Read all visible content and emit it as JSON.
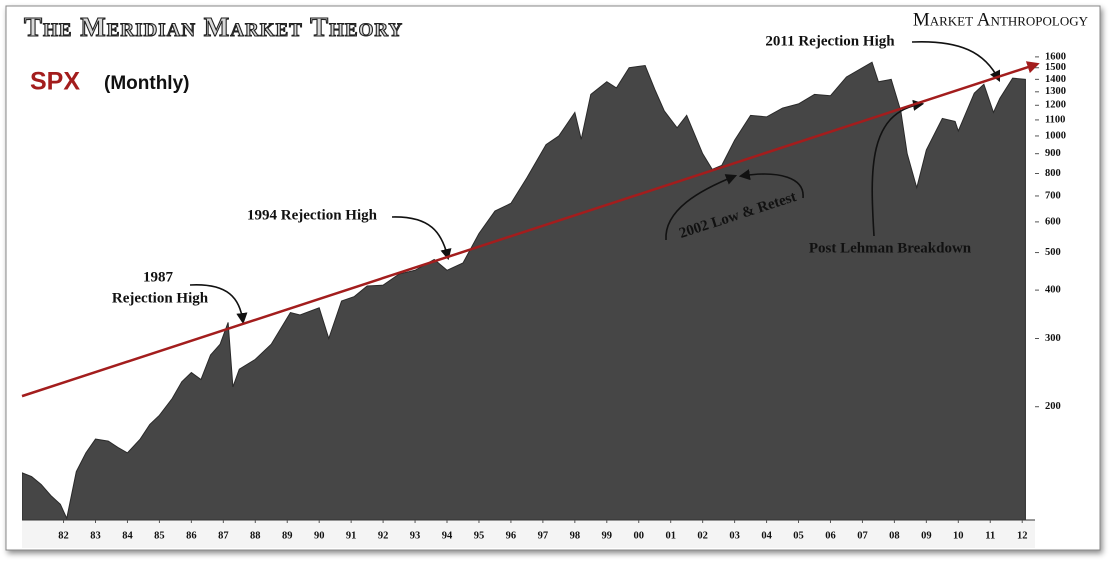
{
  "chart_data": {
    "type": "area",
    "title": "The Meridian Market Theory",
    "source": "Market Anthropology",
    "subtitle": "SPX",
    "period": "(Monthly)",
    "log_scale": true,
    "color": "#464646",
    "x": [
      1981.2,
      1981.5,
      1981.8,
      1982.1,
      1982.4,
      1982.6,
      1982.9,
      1983.2,
      1983.5,
      1983.9,
      1984.2,
      1984.5,
      1984.9,
      1985.2,
      1985.5,
      1985.9,
      1986.2,
      1986.5,
      1986.8,
      1987.1,
      1987.4,
      1987.65,
      1987.8,
      1988.0,
      1988.5,
      1989.0,
      1989.6,
      1989.9,
      1990.5,
      1990.8,
      1991.2,
      1991.6,
      1992.0,
      1992.5,
      1993.0,
      1993.5,
      1994.1,
      1994.5,
      1995.0,
      1995.5,
      1996.0,
      1996.5,
      1997.0,
      1997.6,
      1998.0,
      1998.5,
      1998.7,
      1999.0,
      1999.5,
      1999.8,
      2000.2,
      2000.7,
      2001.0,
      2001.3,
      2001.7,
      2002.0,
      2002.5,
      2002.8,
      2003.1,
      2003.5,
      2004.0,
      2004.5,
      2005.0,
      2005.5,
      2006.0,
      2006.5,
      2007.0,
      2007.8,
      2008.0,
      2008.4,
      2008.7,
      2008.9,
      2009.2,
      2009.5,
      2010.0,
      2010.4,
      2010.5,
      2011.0,
      2011.3,
      2011.6,
      2011.8,
      2012.2,
      2012.6
    ],
    "values": [
      135,
      132,
      126,
      118,
      112,
      103,
      136,
      152,
      165,
      163,
      157,
      152,
      165,
      180,
      190,
      210,
      232,
      245,
      235,
      272,
      290,
      330,
      225,
      250,
      265,
      290,
      350,
      345,
      360,
      300,
      375,
      385,
      410,
      412,
      440,
      450,
      480,
      450,
      470,
      560,
      640,
      670,
      780,
      950,
      1000,
      1150,
      980,
      1280,
      1380,
      1330,
      1500,
      1520,
      1320,
      1160,
      1050,
      1130,
      900,
      820,
      840,
      975,
      1130,
      1120,
      1180,
      1210,
      1280,
      1270,
      1420,
      1550,
      1380,
      1400,
      1160,
      900,
      735,
      920,
      1110,
      1090,
      1030,
      1290,
      1360,
      1150,
      1250,
      1410,
      1400
    ],
    "trend_line": {
      "color": "#a31d1d",
      "x": [
        1981.2,
        2012.9
      ],
      "values": [
        213,
        1526
      ]
    },
    "xlim": [
      1981.2,
      2012.9
    ],
    "ylim": [
      102,
      1618
    ],
    "yticks": [
      200,
      300,
      400,
      500,
      600,
      700,
      800,
      900,
      1000,
      1100,
      1200,
      1300,
      1400,
      1500,
      1600
    ],
    "xticks": [
      {
        "value": 1982.5,
        "label": "82"
      },
      {
        "value": 1983.5,
        "label": "83"
      },
      {
        "value": 1984.5,
        "label": "84"
      },
      {
        "value": 1985.5,
        "label": "85"
      },
      {
        "value": 1986.5,
        "label": "86"
      },
      {
        "value": 1987.5,
        "label": "87"
      },
      {
        "value": 1988.5,
        "label": "88"
      },
      {
        "value": 1989.5,
        "label": "89"
      },
      {
        "value": 1990.5,
        "label": "90"
      },
      {
        "value": 1991.5,
        "label": "91"
      },
      {
        "value": 1992.5,
        "label": "92"
      },
      {
        "value": 1993.5,
        "label": "93"
      },
      {
        "value": 1994.5,
        "label": "94"
      },
      {
        "value": 1995.5,
        "label": "95"
      },
      {
        "value": 1996.5,
        "label": "96"
      },
      {
        "value": 1997.5,
        "label": "97"
      },
      {
        "value": 1998.5,
        "label": "98"
      },
      {
        "value": 1999.5,
        "label": "99"
      },
      {
        "value": 2000.5,
        "label": "00"
      },
      {
        "value": 2001.5,
        "label": "01"
      },
      {
        "value": 2002.5,
        "label": "02"
      },
      {
        "value": 2003.5,
        "label": "03"
      },
      {
        "value": 2004.5,
        "label": "04"
      },
      {
        "value": 2005.5,
        "label": "05"
      },
      {
        "value": 2006.5,
        "label": "06"
      },
      {
        "value": 2007.5,
        "label": "07"
      },
      {
        "value": 2008.5,
        "label": "08"
      },
      {
        "value": 2009.5,
        "label": "09"
      },
      {
        "value": 2010.5,
        "label": "10"
      },
      {
        "value": 2011.5,
        "label": "11"
      },
      {
        "value": 2012.5,
        "label": "12"
      }
    ],
    "annotations": [
      "2011 Rejection High",
      "1994 Rejection High",
      "1987",
      "Rejection High",
      "2002 Low & Retest",
      "Post Lehman Breakdown"
    ]
  }
}
